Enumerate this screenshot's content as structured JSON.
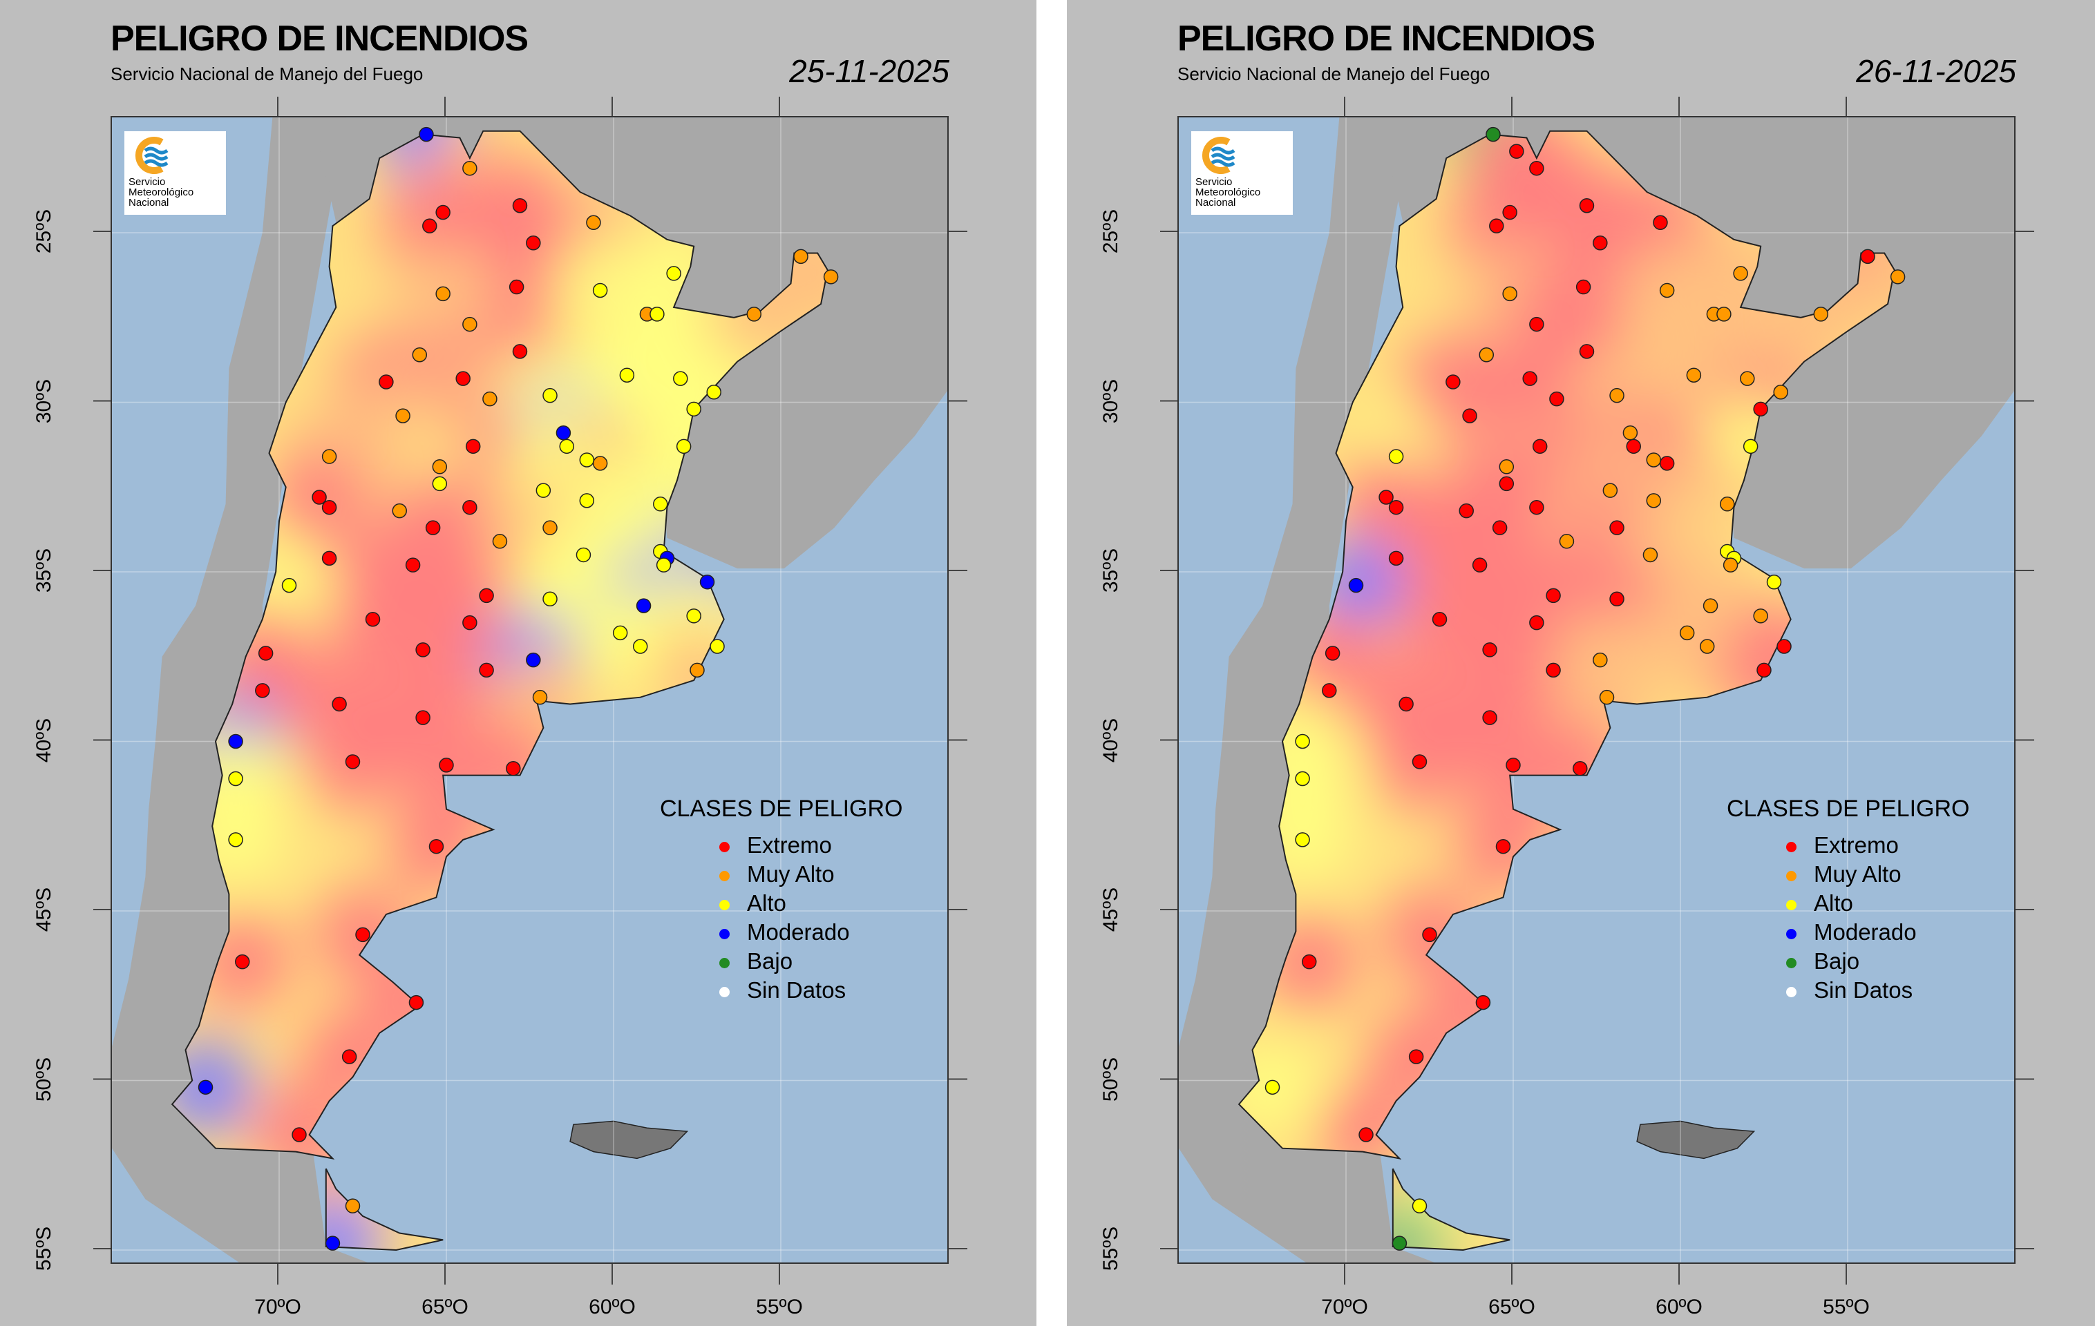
{
  "maps": [
    {
      "title": "PELIGRO DE INCENDIOS",
      "subtitle": "Servicio Nacional de Manejo del Fuego",
      "date": "25-11-2025",
      "classes": "BORRRORROYYOYOOOOORRRYYOYYYORBYYOYOOYRRORYYYOORRRYYYBYBRYBRRYRYYYRRBORORRBRYRRYRRRRRBROB-"
    },
    {
      "title": "PELIGRO DE INCENDIOS",
      "subtitle": "Servicio Nacional de Manejo del Fuego",
      "date": "26-11-2025",
      "classes": "GRRRRRRROOOOOROORORRROOROORRRORORYYORRRRROOOORRRRBOYYOYRRORROROORRRORRORRYRYRRYRRRRRYRYGR"
    }
  ],
  "logo": {
    "lines": [
      "Servicio",
      "Meteorológico",
      "Nacional"
    ],
    "colors": {
      "ring": "#f5a623",
      "waves": "#1e88c8"
    }
  },
  "legend": {
    "title": "CLASES DE PELIGRO",
    "items": [
      {
        "key": "R",
        "label": "Extremo",
        "color": "#ff0000",
        "field": "#ff8080"
      },
      {
        "key": "O",
        "label": "Muy Alto",
        "color": "#ff9900",
        "field": "#ffc080"
      },
      {
        "key": "Y",
        "label": "Alto",
        "color": "#ffff00",
        "field": "#ffff80"
      },
      {
        "key": "B",
        "label": "Moderado",
        "color": "#0000ff",
        "field": "#8080ff"
      },
      {
        "key": "G",
        "label": "Bajo",
        "color": "#228b22",
        "field": "#80c080"
      },
      {
        "key": "W",
        "label": "Sin Datos",
        "color": "#ffffff",
        "field": "#ffffff"
      }
    ]
  },
  "axes": {
    "lon_ticks": [
      {
        "value": -70,
        "label": "70ºO"
      },
      {
        "value": -65,
        "label": "65ºO"
      },
      {
        "value": -60,
        "label": "60ºO"
      },
      {
        "value": -55,
        "label": "55ºO"
      }
    ],
    "lat_ticks": [
      {
        "value": -25,
        "label": "25ºS"
      },
      {
        "value": -30,
        "label": "30ºS"
      },
      {
        "value": -35,
        "label": "35ºS"
      },
      {
        "value": -40,
        "label": "40ºS"
      },
      {
        "value": -45,
        "label": "45ºS"
      },
      {
        "value": -50,
        "label": "50ºS"
      },
      {
        "value": -55,
        "label": "55ºS"
      }
    ]
  },
  "colors": {
    "ocean": "#9fbcd8",
    "neighbor_land": "#a8a8a8",
    "background": "#bebebe"
  },
  "stations": [
    [
      -65.6,
      -22.1
    ],
    [
      -64.3,
      -23.1
    ],
    [
      -65.1,
      -24.4
    ],
    [
      -65.5,
      -24.8
    ],
    [
      -62.8,
      -24.2
    ],
    [
      -60.6,
      -24.7
    ],
    [
      -62.4,
      -25.3
    ],
    [
      -62.9,
      -26.6
    ],
    [
      -65.1,
      -26.8
    ],
    [
      -60.4,
      -26.7
    ],
    [
      -58.2,
      -26.2
    ],
    [
      -59.0,
      -27.4
    ],
    [
      -58.7,
      -27.4
    ],
    [
      -54.4,
      -25.7
    ],
    [
      -53.5,
      -26.3
    ],
    [
      -55.8,
      -27.4
    ],
    [
      -64.3,
      -27.7
    ],
    [
      -65.8,
      -28.6
    ],
    [
      -62.8,
      -28.5
    ],
    [
      -66.8,
      -29.4
    ],
    [
      -64.5,
      -29.3
    ],
    [
      -59.6,
      -29.2
    ],
    [
      -58.0,
      -29.3
    ],
    [
      -63.7,
      -29.9
    ],
    [
      -61.9,
      -29.8
    ],
    [
      -57.0,
      -29.7
    ],
    [
      -57.6,
      -30.2
    ],
    [
      -66.3,
      -30.4
    ],
    [
      -64.2,
      -31.3
    ],
    [
      -61.5,
      -30.9
    ],
    [
      -61.4,
      -31.3
    ],
    [
      -60.8,
      -31.7
    ],
    [
      -60.4,
      -31.8
    ],
    [
      -57.9,
      -31.3
    ],
    [
      -68.5,
      -31.6
    ],
    [
      -65.2,
      -31.9
    ],
    [
      -65.2,
      -32.4
    ],
    [
      -68.8,
      -32.8
    ],
    [
      -68.5,
      -33.1
    ],
    [
      -66.4,
      -33.2
    ],
    [
      -64.3,
      -33.1
    ],
    [
      -62.1,
      -32.6
    ],
    [
      -60.8,
      -32.9
    ],
    [
      -58.6,
      -33.0
    ],
    [
      -63.4,
      -34.1
    ],
    [
      -61.9,
      -33.7
    ],
    [
      -68.5,
      -34.6
    ],
    [
      -66.0,
      -34.8
    ],
    [
      -65.4,
      -33.7
    ],
    [
      -69.7,
      -35.4
    ],
    [
      -60.9,
      -34.5
    ],
    [
      -58.6,
      -34.4
    ],
    [
      -58.4,
      -34.6
    ],
    [
      -58.5,
      -34.8
    ],
    [
      -57.2,
      -35.3
    ],
    [
      -63.8,
      -35.7
    ],
    [
      -61.9,
      -35.8
    ],
    [
      -59.1,
      -36.0
    ],
    [
      -67.2,
      -36.4
    ],
    [
      -64.3,
      -36.5
    ],
    [
      -57.6,
      -36.3
    ],
    [
      -65.7,
      -37.3
    ],
    [
      -59.8,
      -36.8
    ],
    [
      -59.2,
      -37.2
    ],
    [
      -56.9,
      -37.2
    ],
    [
      -70.4,
      -37.4
    ],
    [
      -63.8,
      -37.9
    ],
    [
      -62.4,
      -37.6
    ],
    [
      -57.5,
      -37.9
    ],
    [
      -70.5,
      -38.5
    ],
    [
      -62.2,
      -38.7
    ],
    [
      -68.2,
      -38.9
    ],
    [
      -65.7,
      -39.3
    ],
    [
      -71.3,
      -40.0
    ],
    [
      -67.8,
      -40.6
    ],
    [
      -71.3,
      -41.1
    ],
    [
      -65.0,
      -40.7
    ],
    [
      -63.0,
      -40.8
    ],
    [
      -71.3,
      -42.9
    ],
    [
      -65.3,
      -43.1
    ],
    [
      -67.5,
      -45.7
    ],
    [
      -71.1,
      -46.5
    ],
    [
      -65.9,
      -47.7
    ],
    [
      -67.9,
      -49.3
    ],
    [
      -72.2,
      -50.2
    ],
    [
      -69.4,
      -51.6
    ],
    [
      -67.8,
      -53.7
    ],
    [
      -68.4,
      -54.8
    ],
    [
      -64.9,
      -22.6
    ]
  ]
}
